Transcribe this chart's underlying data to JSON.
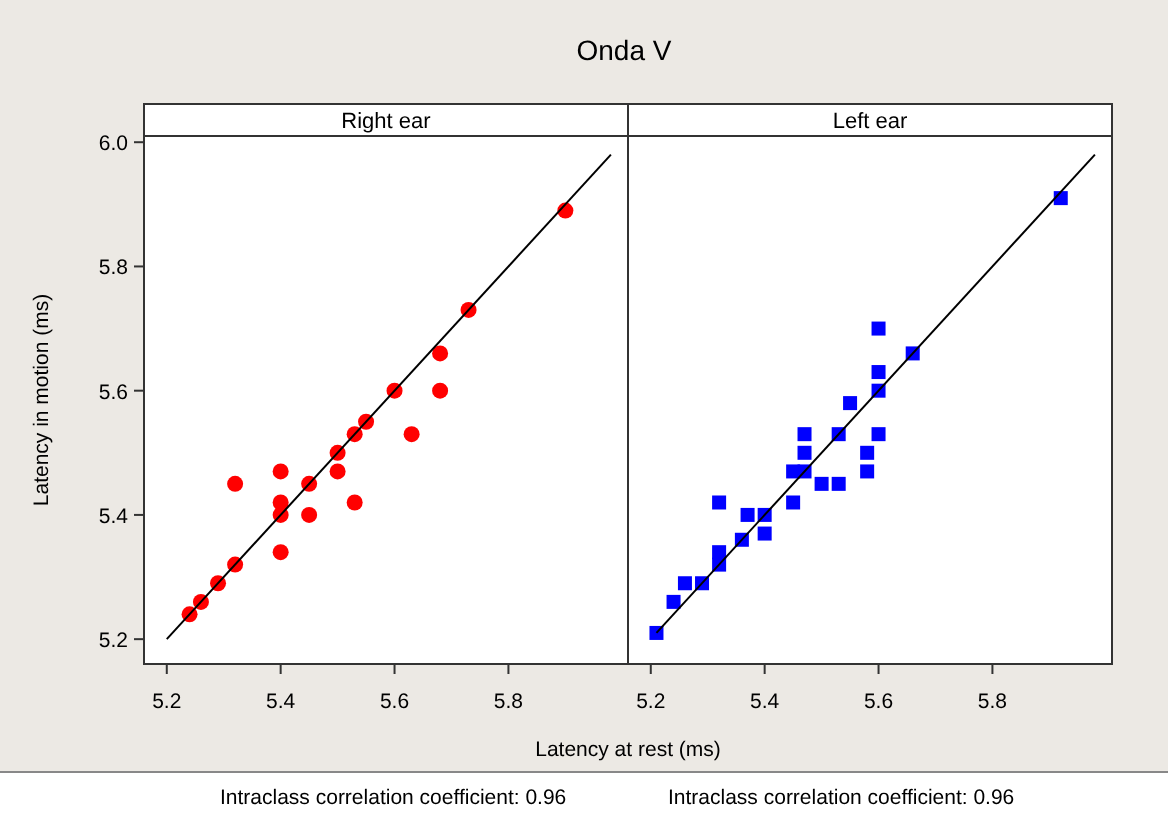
{
  "chart_data": [
    {
      "type": "other",
      "title": "Onda V"
    },
    {
      "type": "scatter",
      "title": "Right ear",
      "xlabel": "Latency at rest (ms)",
      "ylabel": "Latency in motion (ms)",
      "xlim": [
        5.16,
        6.01
      ],
      "ylim": [
        5.16,
        6.01
      ],
      "xticks": [
        5.2,
        5.4,
        5.6,
        5.8
      ],
      "yticks": [
        5.2,
        5.4,
        5.6,
        5.8,
        {
          "value": 6.0,
          "label": "6.0"
        }
      ],
      "annotations": [
        "Intraclass correlation coefficient: 0.96"
      ],
      "series": [
        {
          "type": "scatter",
          "marker": "circle",
          "color": "#ff0000",
          "x": [
            5.24,
            5.26,
            5.29,
            5.32,
            5.32,
            5.4,
            5.4,
            5.4,
            5.4,
            5.45,
            5.45,
            5.5,
            5.5,
            5.53,
            5.53,
            5.55,
            5.6,
            5.63,
            5.68,
            5.68,
            5.73,
            5.9
          ],
          "values": [
            5.24,
            5.26,
            5.29,
            5.32,
            5.45,
            5.47,
            5.42,
            5.4,
            5.34,
            5.45,
            5.4,
            5.5,
            5.47,
            5.53,
            5.42,
            5.55,
            5.6,
            5.53,
            5.66,
            5.6,
            5.73,
            5.89
          ]
        },
        {
          "type": "line",
          "color": "#000000",
          "x": [
            5.2,
            5.98
          ],
          "values": [
            5.2,
            5.98
          ]
        }
      ]
    },
    {
      "type": "scatter",
      "title": "Left ear",
      "xlim": [
        5.16,
        6.01
      ],
      "ylim": [
        5.16,
        6.01
      ],
      "xticks": [
        5.2,
        5.4,
        5.6,
        5.8
      ],
      "tick_labels": "x",
      "annotations": [
        "Intraclass correlation coefficient: 0.96"
      ],
      "series": [
        {
          "type": "scatter",
          "marker": "square",
          "color": "#0000ff",
          "x": [
            5.21,
            5.24,
            5.26,
            5.29,
            5.32,
            5.32,
            5.32,
            5.36,
            5.37,
            5.4,
            5.4,
            5.45,
            5.45,
            5.47,
            5.47,
            5.47,
            5.5,
            5.53,
            5.53,
            5.55,
            5.58,
            5.58,
            5.6,
            5.6,
            5.6,
            5.6,
            5.66,
            5.92
          ],
          "values": [
            5.21,
            5.26,
            5.29,
            5.29,
            5.34,
            5.32,
            5.42,
            5.36,
            5.4,
            5.4,
            5.37,
            5.42,
            5.47,
            5.47,
            5.5,
            5.53,
            5.45,
            5.45,
            5.53,
            5.58,
            5.5,
            5.47,
            5.53,
            5.6,
            5.63,
            5.7,
            5.66,
            5.91
          ]
        },
        {
          "type": "line",
          "color": "#000000",
          "x": [
            5.21,
            5.98
          ],
          "values": [
            5.21,
            5.98
          ]
        }
      ]
    }
  ]
}
